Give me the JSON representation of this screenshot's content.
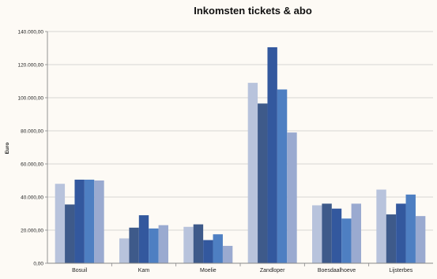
{
  "chart_data": {
    "type": "bar",
    "title": "Inkomsten tickets & abo",
    "xlabel": "",
    "ylabel": "Euro",
    "ylim": [
      0,
      140000
    ],
    "yticks": [
      0,
      20000,
      40000,
      60000,
      80000,
      100000,
      120000,
      140000
    ],
    "ytick_labels": [
      "0,00",
      "20.000,00",
      "40.000,00",
      "60.000,00",
      "80.000,00",
      "100.000,00",
      "120.000,00",
      "140.000,00"
    ],
    "grid": true,
    "legend": "none",
    "categories": [
      "Bosuil",
      "Kam",
      "Moelie",
      "Zandloper",
      "Boesdaalhoeve",
      "Lijsterbes"
    ],
    "series": [
      {
        "color": "#b8c3dc",
        "values": [
          48000,
          15000,
          22000,
          109000,
          35000,
          44500
        ]
      },
      {
        "color": "#3e5a8a",
        "values": [
          35500,
          21500,
          23500,
          96500,
          36000,
          29500
        ]
      },
      {
        "color": "#33589e",
        "values": [
          50500,
          29000,
          14000,
          130500,
          33000,
          36000
        ]
      },
      {
        "color": "#4e7fc2",
        "values": [
          50500,
          21000,
          17500,
          105000,
          27000,
          41500
        ]
      },
      {
        "color": "#9aaad0",
        "values": [
          50000,
          23000,
          10500,
          79000,
          36000,
          28500
        ]
      }
    ]
  }
}
